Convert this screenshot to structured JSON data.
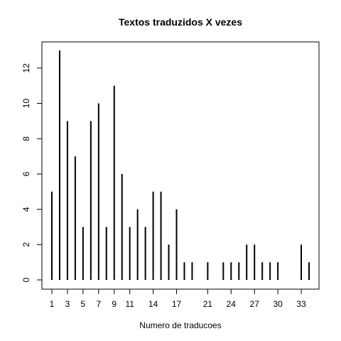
{
  "chart_data": {
    "type": "bar",
    "title": "Textos traduzidos X vezes",
    "xlabel": "Numero de traducoes",
    "ylabel": "",
    "x": [
      1,
      2,
      3,
      4,
      5,
      6,
      7,
      8,
      9,
      10,
      11,
      12,
      13,
      14,
      15,
      16,
      17,
      18,
      19,
      21,
      23,
      24,
      25,
      26,
      27,
      28,
      29,
      30,
      33,
      34
    ],
    "values": [
      5,
      13,
      9,
      7,
      3,
      9,
      10,
      3,
      11,
      6,
      3,
      4,
      3,
      5,
      5,
      2,
      4,
      1,
      1,
      1,
      1,
      1,
      1,
      2,
      2,
      1,
      1,
      1,
      2,
      1
    ],
    "xticks": [
      "1",
      "3",
      "5",
      "7",
      "9",
      "11",
      "14",
      "17",
      "21",
      "24",
      "27",
      "30",
      "33"
    ],
    "yticks": [
      "0",
      "2",
      "4",
      "6",
      "8",
      "10",
      "12"
    ],
    "xlim": [
      1,
      34
    ],
    "ylim": [
      0,
      13
    ],
    "grid": false,
    "legend": "none",
    "colors": {
      "bars": "#000000",
      "box": "#000000",
      "background": "#ffffff"
    }
  }
}
